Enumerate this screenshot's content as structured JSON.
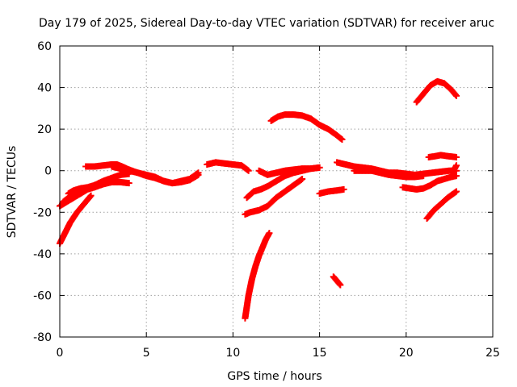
{
  "chart_data": {
    "type": "scatter",
    "title": "Day 179 of 2025, Sidereal Day-to-day VTEC variation (SDTVAR) for receiver aruc",
    "xlabel": "GPS time / hours",
    "ylabel": "SDTVAR / TECUs",
    "xlim": [
      0,
      25
    ],
    "ylim": [
      -80,
      60
    ],
    "xticks": [
      0,
      5,
      10,
      15,
      20,
      25
    ],
    "yticks": [
      -80,
      -60,
      -40,
      -20,
      0,
      20,
      40,
      60
    ],
    "grid": true,
    "marker": "plus",
    "color": "#ff0000",
    "series": [
      {
        "x": [
          0.0,
          0.3,
          0.6,
          1.0,
          1.4,
          1.8
        ],
        "values": [
          -35,
          -30,
          -25,
          -20,
          -16,
          -12
        ]
      },
      {
        "x": [
          0.0,
          0.4,
          0.8,
          1.2,
          1.6,
          2.0,
          2.5,
          3.0,
          3.5,
          4.0
        ],
        "values": [
          -17,
          -15,
          -13,
          -11,
          -9,
          -8,
          -6.5,
          -5.5,
          -5.5,
          -6
        ]
      },
      {
        "x": [
          0.2,
          0.5,
          1.0,
          1.5,
          2.0,
          2.5,
          3.0,
          3.5,
          4.0
        ],
        "values": [
          -15,
          -13,
          -11,
          -9,
          -7,
          -5,
          -3.5,
          -2,
          -1.5
        ]
      },
      {
        "x": [
          0.5,
          0.8,
          1.2,
          1.6,
          2.0
        ],
        "values": [
          -11,
          -9.5,
          -8.5,
          -8,
          -7
        ]
      },
      {
        "x": [
          1.5,
          2.0,
          2.5,
          3.0,
          3.3,
          3.6,
          4.0,
          4.5,
          5.0,
          5.5,
          6.0,
          6.5,
          7.0,
          7.5,
          8.0
        ],
        "values": [
          2,
          2,
          2.5,
          3,
          3,
          2,
          0.5,
          -1,
          -2,
          -3,
          -5,
          -6,
          -5,
          -4,
          -1
        ]
      },
      {
        "x": [
          3.0,
          3.5,
          4.0,
          4.5,
          5.0,
          5.5,
          6.0,
          6.5,
          7.0,
          7.5,
          8.0
        ],
        "values": [
          2,
          1,
          0,
          -1,
          -2.5,
          -3.5,
          -5,
          -6,
          -5.5,
          -4.5,
          -2
        ]
      },
      {
        "x": [
          8.5,
          9.0,
          9.5,
          10.0,
          10.5,
          10.9
        ],
        "values": [
          3,
          4,
          3.5,
          3,
          2.5,
          0
        ]
      },
      {
        "x": [
          10.7,
          10.9,
          11.1,
          11.3,
          11.5,
          11.7,
          11.9,
          12.1
        ],
        "values": [
          -71,
          -60,
          -52,
          -46,
          -41,
          -37,
          -33,
          -30
        ]
      },
      {
        "x": [
          10.7,
          11.0,
          11.5,
          12.0,
          12.5,
          13.0,
          13.5,
          14.0
        ],
        "values": [
          -21,
          -20,
          -19,
          -17,
          -13,
          -10,
          -7,
          -4
        ]
      },
      {
        "x": [
          10.8,
          11.2,
          11.6,
          12.0,
          12.5,
          13.0,
          13.5,
          14.0,
          14.5,
          15.0
        ],
        "values": [
          -13,
          -10,
          -9,
          -7.5,
          -5,
          -2.5,
          -1,
          0,
          1,
          1.5
        ]
      },
      {
        "x": [
          11.5,
          12.0,
          12.5,
          13.0,
          13.5,
          14.0,
          14.5,
          15.0
        ],
        "values": [
          0,
          -2,
          -1,
          0,
          0.5,
          1,
          1,
          1.5
        ]
      },
      {
        "x": [
          12.2,
          12.6,
          13.0,
          13.5,
          14.0,
          14.5,
          15.0,
          15.5,
          16.0,
          16.3
        ],
        "values": [
          24,
          26,
          27,
          27,
          26.5,
          25,
          22,
          20,
          17,
          15
        ]
      },
      {
        "x": [
          15.0,
          15.5,
          16.0,
          16.4
        ],
        "values": [
          -11,
          -10,
          -9.5,
          -9
        ]
      },
      {
        "x": [
          15.8,
          16.0,
          16.2
        ],
        "values": [
          -51,
          -53,
          -55
        ]
      },
      {
        "x": [
          16.0,
          16.5,
          17.0,
          17.5,
          18.0,
          18.5,
          19.0,
          19.5,
          20.0,
          20.5,
          21.0,
          21.5,
          22.0,
          22.5,
          22.9
        ],
        "values": [
          4,
          3,
          2,
          1.5,
          1,
          0,
          -1,
          -1,
          -1.5,
          -2,
          -1.5,
          -1,
          -0.5,
          0,
          0
        ]
      },
      {
        "x": [
          17.0,
          17.5,
          18.0,
          18.5,
          19.0,
          19.5,
          20.0,
          20.5,
          21.0
        ],
        "values": [
          0,
          0,
          0,
          -1,
          -2,
          -2.5,
          -3,
          -3,
          -2.5
        ]
      },
      {
        "x": [
          19.8,
          20.2,
          20.6,
          21.0,
          21.4,
          21.8,
          22.2,
          22.6,
          22.9
        ],
        "values": [
          -8,
          -8.5,
          -9,
          -8.5,
          -7,
          -5,
          -4,
          -3,
          -2.5
        ]
      },
      {
        "x": [
          21.2,
          21.6,
          22.0,
          22.4,
          22.9
        ],
        "values": [
          -23,
          -19,
          -16,
          -13,
          -10
        ]
      },
      {
        "x": [
          20.6,
          21.0,
          21.4,
          21.8,
          22.2,
          22.6,
          22.9
        ],
        "values": [
          33,
          37,
          41,
          43,
          42,
          39,
          36
        ]
      },
      {
        "x": [
          21.3,
          21.7,
          22.0,
          22.4,
          22.9
        ],
        "values": [
          6.5,
          7,
          7.5,
          7,
          6.5
        ]
      },
      {
        "x": [
          22.6,
          22.8,
          22.9
        ],
        "values": [
          -1,
          1,
          2.5
        ]
      }
    ]
  }
}
